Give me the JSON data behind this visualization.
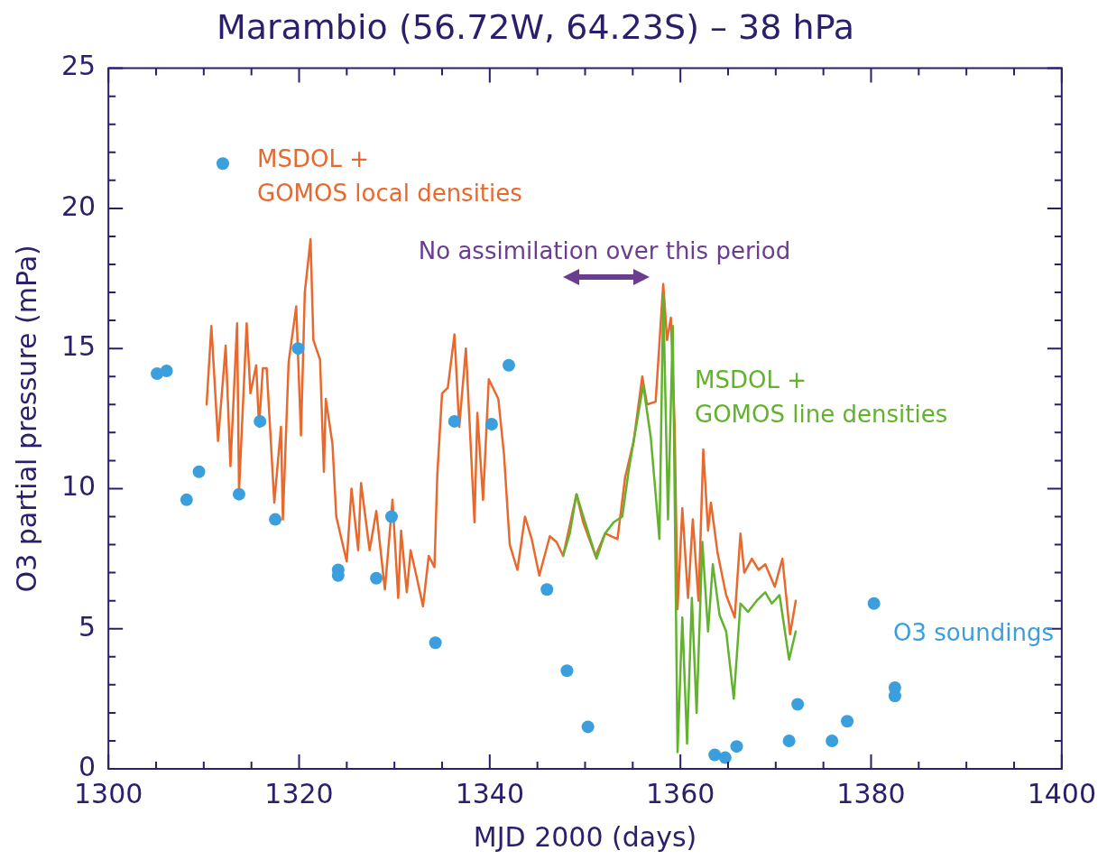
{
  "chart_data": {
    "type": "line",
    "title": "Marambio (56.72W, 64.23S) – 38 hPa",
    "xlabel": "MJD 2000 (days)",
    "ylabel": "O3 partial pressure (mPa)",
    "xlim": [
      1300,
      1400
    ],
    "ylim": [
      0,
      25
    ],
    "xticks": [
      1300,
      {
        "value": 1305,
        "label": null
      },
      {
        "value": 1310,
        "label": null
      },
      {
        "value": 1315,
        "label": null
      },
      1320,
      {
        "value": 1325,
        "label": null
      },
      {
        "value": 1330,
        "label": null
      },
      {
        "value": 1335,
        "label": null
      },
      1340,
      {
        "value": 1345,
        "label": null
      },
      {
        "value": 1350,
        "label": null
      },
      {
        "value": 1355,
        "label": null
      },
      1360,
      {
        "value": 1365,
        "label": null
      },
      {
        "value": 1370,
        "label": null
      },
      {
        "value": 1375,
        "label": null
      },
      1380,
      {
        "value": 1385,
        "label": null
      },
      {
        "value": 1390,
        "label": null
      },
      {
        "value": 1395,
        "label": null
      },
      1400
    ],
    "yticks": [
      0,
      {
        "value": 1,
        "label": null
      },
      {
        "value": 2,
        "label": null
      },
      {
        "value": 3,
        "label": null
      },
      {
        "value": 4,
        "label": null
      },
      5,
      {
        "value": 6,
        "label": null
      },
      {
        "value": 7,
        "label": null
      },
      {
        "value": 8,
        "label": null
      },
      {
        "value": 9,
        "label": null
      },
      10,
      {
        "value": 11,
        "label": null
      },
      {
        "value": 12,
        "label": null
      },
      {
        "value": 13,
        "label": null
      },
      {
        "value": 14,
        "label": null
      },
      15,
      {
        "value": 16,
        "label": null
      },
      {
        "value": 17,
        "label": null
      },
      {
        "value": 18,
        "label": null
      },
      {
        "value": 19,
        "label": null
      },
      20,
      {
        "value": 21,
        "label": null
      },
      {
        "value": 22,
        "label": null
      },
      {
        "value": 23,
        "label": null
      },
      {
        "value": 24,
        "label": null
      },
      25
    ],
    "grid": false,
    "legend": false,
    "marker": "none",
    "line_style": "solid",
    "series": [
      {
        "name": "MSDOL + GOMOS local densities",
        "color": "#e8692e",
        "x": [
          1310.3,
          1310.8,
          1311.5,
          1312.3,
          1312.8,
          1313.5,
          1313.7,
          1314.5,
          1314.9,
          1315.5,
          1315.8,
          1316.2,
          1316.6,
          1317.4,
          1318.1,
          1318.3,
          1318.9,
          1319.7,
          1320.2,
          1320.6,
          1321.2,
          1321.5,
          1322.2,
          1322.6,
          1322.8,
          1323.5,
          1323.9,
          1325.0,
          1325.5,
          1326.2,
          1326.5,
          1327.4,
          1328.1,
          1329.0,
          1329.8,
          1330.4,
          1330.7,
          1331.3,
          1331.7,
          1332.3,
          1333.0,
          1333.6,
          1334.2,
          1334.5,
          1335.0,
          1335.6,
          1336.3,
          1336.8,
          1337.5,
          1338.4,
          1338.7,
          1339.3,
          1339.9,
          1340.9,
          1341.5,
          1342.1,
          1342.9,
          1343.7,
          1344.4,
          1345.2,
          1346.3,
          1347.0,
          1347.7,
          1349.1,
          1349.8,
          1351.1,
          1352.1,
          1353.4,
          1354.2,
          1355.1,
          1356.0,
          1356.5,
          1357.4,
          1358.2,
          1358.6,
          1359.0,
          1359.4,
          1359.7,
          1360.2,
          1360.8,
          1361.3,
          1361.9,
          1362.4,
          1362.9,
          1363.2,
          1363.9,
          1364.8,
          1365.7,
          1366.3,
          1366.7,
          1367.5,
          1368.2,
          1368.9,
          1369.9,
          1370.7,
          1371.5,
          1372.1
        ],
        "values": [
          13.0,
          15.8,
          11.7,
          15.1,
          10.8,
          15.9,
          9.9,
          15.9,
          13.4,
          14.4,
          12.2,
          14.3,
          14.3,
          9.5,
          12.2,
          8.9,
          14.5,
          16.5,
          11.9,
          17.0,
          18.9,
          15.3,
          14.6,
          10.6,
          13.2,
          11.6,
          9.0,
          7.4,
          10.0,
          7.8,
          10.2,
          7.8,
          9.2,
          6.4,
          9.6,
          6.1,
          8.5,
          6.3,
          7.8,
          6.9,
          5.8,
          7.6,
          7.2,
          10.5,
          13.4,
          13.6,
          15.5,
          12.2,
          15.0,
          8.8,
          12.7,
          9.6,
          13.9,
          13.2,
          11.2,
          8.0,
          7.1,
          9.0,
          8.2,
          6.9,
          8.3,
          8.1,
          7.6,
          9.8,
          8.8,
          7.6,
          8.4,
          8.2,
          10.4,
          11.7,
          14.0,
          13.0,
          13.1,
          17.3,
          15.3,
          16.1,
          12.2,
          5.7,
          9.3,
          6.1,
          8.9,
          6.0,
          11.4,
          8.5,
          9.5,
          7.7,
          6.2,
          5.4,
          8.4,
          7.0,
          7.5,
          7.1,
          7.3,
          6.5,
          7.5,
          4.8,
          6.0
        ]
      },
      {
        "name": "MSDOL + GOMOS line densities",
        "color": "#62b22f",
        "x": [
          1347.7,
          1348.4,
          1349.1,
          1350.0,
          1351.2,
          1352.1,
          1353.0,
          1353.9,
          1354.6,
          1355.5,
          1356.1,
          1356.9,
          1357.8,
          1358.2,
          1358.7,
          1359.2,
          1359.7,
          1360.2,
          1360.7,
          1361.2,
          1361.7,
          1362.3,
          1362.9,
          1363.4,
          1364.1,
          1364.8,
          1365.6,
          1366.3,
          1367.1,
          1368.0,
          1368.9,
          1369.6,
          1370.4,
          1371.4,
          1372.1
        ],
        "values": [
          7.6,
          8.4,
          9.8,
          8.8,
          7.5,
          8.4,
          8.8,
          9.0,
          10.7,
          12.5,
          13.7,
          11.8,
          8.2,
          16.9,
          8.9,
          15.8,
          0.6,
          5.4,
          0.9,
          6.1,
          2.0,
          8.1,
          4.9,
          7.3,
          5.5,
          4.9,
          2.5,
          5.9,
          5.6,
          6.0,
          6.3,
          5.9,
          6.2,
          3.9,
          4.9
        ]
      },
      {
        "name": "O3 soundings",
        "type": "scatter",
        "marker": "circle",
        "color": "#3a9fdc",
        "x": [
          1305.1,
          1306.1,
          1308.2,
          1309.5,
          1312.0,
          1313.7,
          1315.9,
          1317.5,
          1319.9,
          1324.1,
          1324.1,
          1328.1,
          1329.7,
          1334.3,
          1336.3,
          1340.2,
          1342.0,
          1346.0,
          1348.1,
          1350.3,
          1363.6,
          1364.7,
          1365.9,
          1371.4,
          1372.3,
          1375.9,
          1377.5,
          1380.3,
          1382.5,
          1382.5
        ],
        "values": [
          14.1,
          14.2,
          9.6,
          10.6,
          21.6,
          9.8,
          12.4,
          8.9,
          15.0,
          7.1,
          6.9,
          6.8,
          9.0,
          4.5,
          12.4,
          12.3,
          14.4,
          6.4,
          3.5,
          1.5,
          0.5,
          0.4,
          0.8,
          1.0,
          2.3,
          1.0,
          1.7,
          5.9,
          2.9,
          2.6
        ]
      }
    ],
    "annotations": [
      "No assimilation over this period"
    ]
  }
}
